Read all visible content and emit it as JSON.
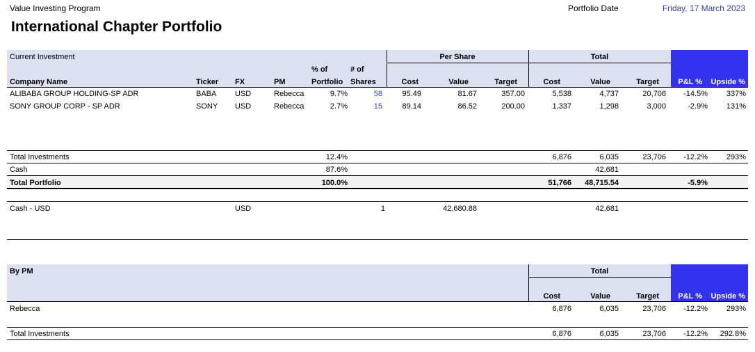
{
  "header": {
    "program": "Value Investing Program",
    "title": "International Chapter Portfolio",
    "date_label": "Portfolio Date",
    "date_value": "Friday, 17 March 2023"
  },
  "current_investment": {
    "section_label": "Current Investment",
    "group_per_share": "Per Share",
    "group_total": "Total",
    "columns": {
      "company": "Company Name",
      "ticker": "Ticker",
      "fx": "FX",
      "pm": "PM",
      "pct_line1": "% of",
      "pct_line2": "Portfolio",
      "shares_line1": "# of",
      "shares_line2": "Shares",
      "ps_cost": "Cost",
      "ps_value": "Value",
      "ps_target": "Target",
      "t_cost": "Cost",
      "t_value": "Value",
      "t_target": "Target",
      "pl": "P&L %",
      "upside": "Upside %"
    },
    "rows": [
      {
        "company": "ALIBABA GROUP HOLDING-SP ADR",
        "ticker": "BABA",
        "fx": "USD",
        "pm": "Rebecca",
        "pct": "9.7%",
        "shares": "58",
        "ps_cost": "95.49",
        "ps_value": "81.67",
        "ps_target": "357.00",
        "t_cost": "5,538",
        "t_value": "4,737",
        "t_target": "20,706",
        "pl": "-14.5%",
        "upside": "337%"
      },
      {
        "company": "SONY GROUP CORP - SP ADR",
        "ticker": "SONY",
        "fx": "USD",
        "pm": "Rebecca",
        "pct": "2.7%",
        "shares": "15",
        "ps_cost": "89.14",
        "ps_value": "86.52",
        "ps_target": "200.00",
        "t_cost": "1,337",
        "t_value": "1,298",
        "t_target": "3,000",
        "pl": "-2.9%",
        "upside": "131%"
      }
    ]
  },
  "totals": {
    "investments": {
      "label": "Total Investments",
      "pct": "12.4%",
      "t_cost": "6,876",
      "t_value": "6,035",
      "t_target": "23,706",
      "pl": "-12.2%",
      "upside": "293%"
    },
    "cash": {
      "label": "Cash",
      "pct": "87.6%",
      "t_value": "42,681"
    },
    "portfolio": {
      "label": "Total Portfolio",
      "pct": "100.0%",
      "t_cost": "51,766",
      "t_value": "48,715.54",
      "pl": "-5.9%"
    }
  },
  "cash_detail": {
    "label": "Cash - USD",
    "fx": "USD",
    "shares": "1",
    "ps_value": "42,680.88",
    "t_value": "42,681"
  },
  "by_pm": {
    "section_label": "By PM",
    "group_total": "Total",
    "columns": {
      "t_cost": "Cost",
      "t_value": "Value",
      "t_target": "Target",
      "pl": "P&L %",
      "upside": "Upside %"
    },
    "rows": [
      {
        "pm": "Rebecca",
        "t_cost": "6,876",
        "t_value": "6,035",
        "t_target": "23,706",
        "pl": "-12.2%",
        "upside": "293%"
      }
    ],
    "total": {
      "label": "Total Investments",
      "t_cost": "6,876",
      "t_value": "6,035",
      "t_target": "23,706",
      "pl": "-12.2%",
      "upside": "292.8%"
    }
  },
  "colors": {
    "band": "#dce0f0",
    "accent": "#3333ee",
    "link_blue": "#2f3fbf"
  }
}
